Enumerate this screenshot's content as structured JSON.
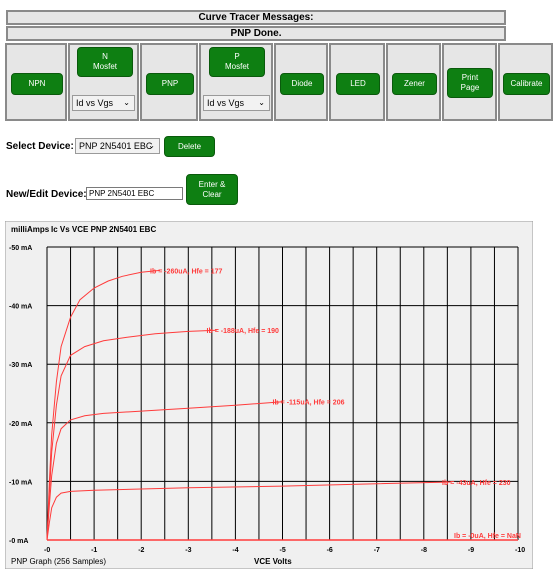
{
  "messages": {
    "title": "Curve Tracer Messages:",
    "status": "PNP Done."
  },
  "buttons": {
    "npn": "NPN",
    "nmosfet": "N\nMosfet",
    "nmosfet_select": "Id vs Vgs",
    "pnp": "PNP",
    "pmosfet": "P\nMosfet",
    "pmosfet_select": "Id vs Vgs",
    "diode": "Diode",
    "led": "LED",
    "zener": "Zener",
    "print": "Print\nPage",
    "calibrate": "Calibrate"
  },
  "device": {
    "select_label": "Select Device:",
    "selected": "PNP 2N5401 EBC",
    "delete": "Delete",
    "edit_label": "New/Edit Device:",
    "edit_value": "PNP 2N5401 EBC",
    "enter_clear": "Enter &\nClear"
  },
  "chart_data": {
    "type": "line",
    "unit_label": "milliAmps",
    "title": "Ic Vs VCE  PNP 2N5401 EBC",
    "xlabel": "VCE Volts",
    "footer": "PNP Graph (256 Samples)",
    "x_ticks": [
      "-0",
      "-1",
      "-2",
      "-3",
      "-4",
      "-5",
      "-6",
      "-7",
      "-8",
      "-9",
      "-10"
    ],
    "y_ticks": [
      "-50 mA",
      "-40 mA",
      "-30 mA",
      "-20 mA",
      "-10 mA",
      "-0 mA"
    ],
    "xlim": [
      0,
      -10
    ],
    "ylim": [
      0,
      -50
    ],
    "grid": true,
    "line_color": "#ff3b3b",
    "series": [
      {
        "name": "Ib = -260uA, Hfe = 177",
        "x": [
          0,
          -0.05,
          -0.1,
          -0.2,
          -0.3,
          -0.5,
          -0.7,
          -1.0,
          -1.3,
          -1.6,
          -2.0,
          -2.4
        ],
        "y": [
          0,
          -10,
          -18,
          -27,
          -33,
          -38,
          -41,
          -43,
          -44.2,
          -45,
          -45.7,
          -46
        ]
      },
      {
        "name": "Ib = -188uA, Hfe = 190",
        "x": [
          0,
          -0.05,
          -0.1,
          -0.2,
          -0.3,
          -0.5,
          -0.8,
          -1.2,
          -1.7,
          -2.3,
          -3.0,
          -3.6
        ],
        "y": [
          0,
          -8,
          -15,
          -23,
          -28,
          -31.5,
          -33,
          -34,
          -34.6,
          -35.2,
          -35.6,
          -35.8
        ]
      },
      {
        "name": "Ib = -115uA, Hfe = 206",
        "x": [
          0,
          -0.05,
          -0.1,
          -0.2,
          -0.3,
          -0.5,
          -0.8,
          -1.2,
          -2.0,
          -3.0,
          -4.0,
          -5.0
        ],
        "y": [
          0,
          -6,
          -11,
          -16.5,
          -19,
          -20.5,
          -21.2,
          -21.6,
          -22,
          -22.5,
          -23,
          -23.6
        ]
      },
      {
        "name": "Ib = -43uA, Hfe = 230",
        "x": [
          0,
          -0.05,
          -0.1,
          -0.2,
          -0.3,
          -0.5,
          -1.0,
          -2.0,
          -3.0,
          -5.0,
          -7.0,
          -8.6
        ],
        "y": [
          0,
          -3,
          -5.5,
          -7.3,
          -8,
          -8.3,
          -8.5,
          -8.7,
          -8.9,
          -9.2,
          -9.6,
          -9.9
        ]
      },
      {
        "name": "Ib = -0uA, Hfe = NaN",
        "x": [
          0,
          -10
        ],
        "y": [
          0,
          0
        ]
      }
    ]
  }
}
